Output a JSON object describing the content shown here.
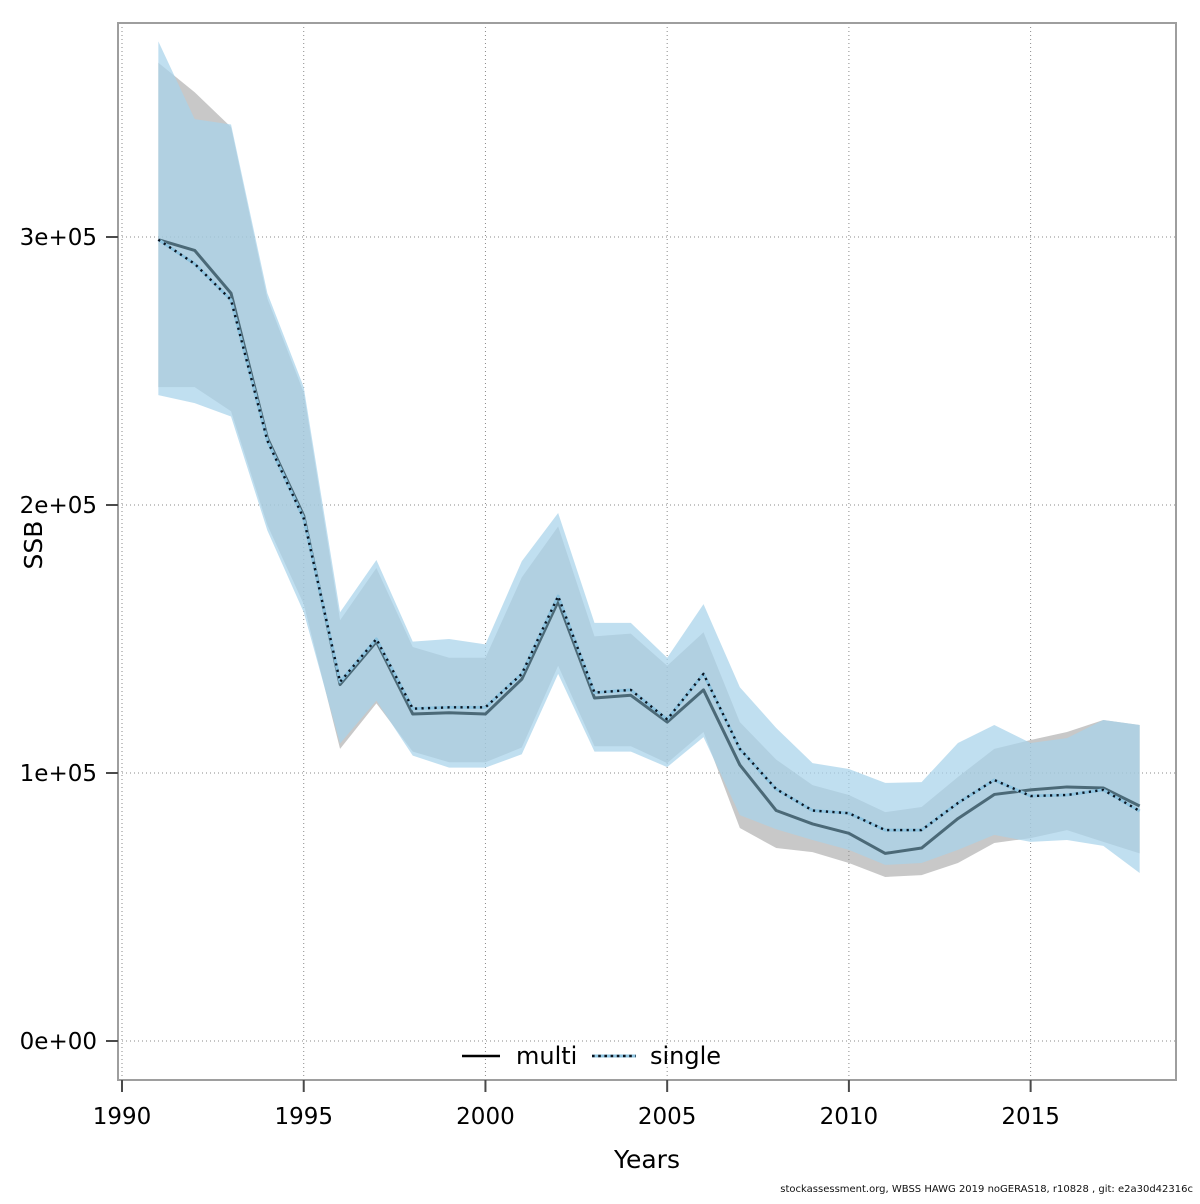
{
  "chart_data": {
    "type": "line",
    "title": "",
    "xlabel": "Years",
    "ylabel": "SSB",
    "grid": true,
    "legend_position": "bottom-center-inside",
    "xlim": [
      1989.89,
      2019.0
    ],
    "ylim": [
      -14550,
      379850
    ],
    "x_ticks": [
      1990,
      1995,
      2000,
      2005,
      2010,
      2015
    ],
    "y_ticks": [
      {
        "value": 0,
        "label": "0e+00"
      },
      {
        "value": 100000,
        "label": "1e+05"
      },
      {
        "value": 200000,
        "label": "2e+05"
      },
      {
        "value": 300000,
        "label": "3e+05"
      }
    ],
    "years": [
      1991,
      1992,
      1993,
      1994,
      1995,
      1996,
      1997,
      1998,
      1999,
      2000,
      2001,
      2002,
      2003,
      2004,
      2005,
      2006,
      2007,
      2008,
      2009,
      2010,
      2011,
      2012,
      2013,
      2014,
      2015,
      2016,
      2017,
      2018
    ],
    "series": [
      {
        "name": "multi",
        "line_style": "solid",
        "line_color": "#000000",
        "band_color": "#8c8c8c",
        "values": [
          299000,
          295000,
          279000,
          225000,
          196000,
          133000,
          149000,
          122000,
          122500,
          122000,
          135000,
          164000,
          128000,
          129000,
          119000,
          131000,
          103000,
          86000,
          81000,
          77500,
          70000,
          72000,
          83000,
          92000,
          93700,
          94800,
          94400,
          87700
        ],
        "lower": [
          244000,
          244000,
          235000,
          192500,
          163000,
          109000,
          126000,
          108000,
          104000,
          104000,
          109500,
          140000,
          110000,
          110000,
          103700,
          115300,
          79500,
          72000,
          70500,
          66400,
          61200,
          61900,
          66400,
          73900,
          75700,
          78700,
          74300,
          70000
        ],
        "upper": [
          365000,
          354000,
          341000,
          277000,
          242000,
          157000,
          176500,
          147000,
          143000,
          143000,
          173000,
          192000,
          151000,
          152000,
          140000,
          152500,
          119000,
          105000,
          95500,
          91800,
          85400,
          87300,
          98500,
          109000,
          112300,
          115300,
          119800,
          117900
        ]
      },
      {
        "name": "single",
        "line_style": "dotted",
        "line_color": "#9ecae1",
        "dash_color": "#000000",
        "band_color": "#a8d2ea",
        "values": [
          299000,
          290000,
          276500,
          224000,
          195000,
          134000,
          150000,
          124000,
          124500,
          124500,
          137000,
          166000,
          130000,
          131000,
          120000,
          137000,
          109000,
          94000,
          86000,
          85000,
          78700,
          78700,
          88800,
          97400,
          91400,
          91800,
          93700,
          85800
        ],
        "lower": [
          241000,
          238000,
          233000,
          190500,
          160000,
          111000,
          127000,
          106500,
          102000,
          102000,
          107000,
          137000,
          108000,
          108000,
          102200,
          113400,
          84300,
          79000,
          75000,
          71300,
          65700,
          66400,
          71300,
          76900,
          74300,
          75000,
          72800,
          62700
        ],
        "upper": [
          373000,
          344000,
          342000,
          279000,
          244000,
          160000,
          179500,
          149000,
          150000,
          148000,
          179000,
          197000,
          156000,
          156000,
          143000,
          163000,
          132000,
          116800,
          103700,
          101500,
          96300,
          96600,
          111200,
          117900,
          111200,
          113000,
          119800,
          117900
        ]
      }
    ],
    "footer": "stockassessment.org, WBSS HAWG 2019 noGERAS18, r10828 , git: e2a30d42316c"
  }
}
